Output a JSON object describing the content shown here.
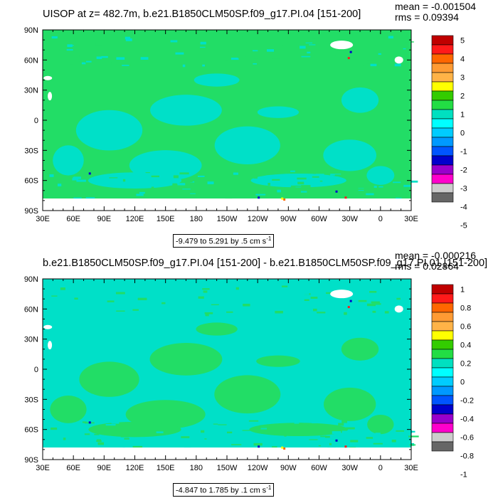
{
  "chart_data": [
    {
      "type": "heatmap",
      "title": "UISOP at z= 482.7m, b.e21.B1850CLM50SP.f09_g17.PI.04 [151-200]",
      "stats": {
        "mean": "mean = -0.001504",
        "rms": "rms = 0.09394"
      },
      "x_ticks": [
        "30E",
        "60E",
        "90E",
        "120E",
        "150E",
        "180",
        "150W",
        "120W",
        "90W",
        "60W",
        "30W",
        "0",
        "30E"
      ],
      "y_ticks": [
        "90N",
        "60N",
        "30N",
        "0",
        "30S",
        "60S",
        "90S"
      ],
      "xlim": [
        30,
        390
      ],
      "ylim": [
        -90,
        90
      ],
      "contour_label": "-9.479 to 5.291 by .5 cm s",
      "contour_label_exp": "-1",
      "colorbar_labels": [
        "5",
        "4",
        "3",
        "2",
        "1",
        "0",
        "-1",
        "-2",
        "-3",
        "-4",
        "-5"
      ],
      "colorbar_colors": [
        "#c00000",
        "#ff1a1a",
        "#ff6600",
        "#ff9b33",
        "#ffb347",
        "#ffff00",
        "#33cc00",
        "#22dd44",
        "#00e0c0",
        "#00ffff",
        "#00ccff",
        "#0099ff",
        "#0055ff",
        "#0000cc",
        "#9900cc",
        "#ff00cc",
        "#cccccc",
        "#666666"
      ],
      "field_colors": {
        "dominant": "#22dd66",
        "secondary": "#00e0c8",
        "land": "#ffffff"
      }
    },
    {
      "type": "heatmap",
      "title": "b.e21.B1850CLM50SP.f09_g17.PI.04 [151-200] - b.e21.B1850CLM50SP.f09_g17.PI.01 [151-200]",
      "stats": {
        "mean": "mean = -0.000216",
        "rms": "rms = 0.02864"
      },
      "x_ticks": [
        "30E",
        "60E",
        "90E",
        "120E",
        "150E",
        "180",
        "150W",
        "120W",
        "90W",
        "60W",
        "30W",
        "0",
        "30E"
      ],
      "y_ticks": [
        "90N",
        "60N",
        "30N",
        "0",
        "30S",
        "60S",
        "90S"
      ],
      "xlim": [
        30,
        390
      ],
      "ylim": [
        -90,
        90
      ],
      "contour_label": "-4.847 to 1.785 by .1 cm s",
      "contour_label_exp": "-1",
      "colorbar_labels": [
        "1",
        "0.8",
        "0.6",
        "0.4",
        "0.2",
        "0",
        "-0.2",
        "-0.4",
        "-0.6",
        "-0.8",
        "-1"
      ],
      "colorbar_colors": [
        "#c00000",
        "#ff1a1a",
        "#ff6600",
        "#ff9b33",
        "#ffb347",
        "#ffff00",
        "#33cc00",
        "#22dd44",
        "#00e0c0",
        "#00ffff",
        "#00ccff",
        "#0099ff",
        "#0055ff",
        "#0000cc",
        "#9900cc",
        "#ff00cc",
        "#cccccc",
        "#666666"
      ],
      "field_colors": {
        "dominant": "#00e0c8",
        "secondary": "#22dd66",
        "land": "#ffffff"
      }
    }
  ]
}
